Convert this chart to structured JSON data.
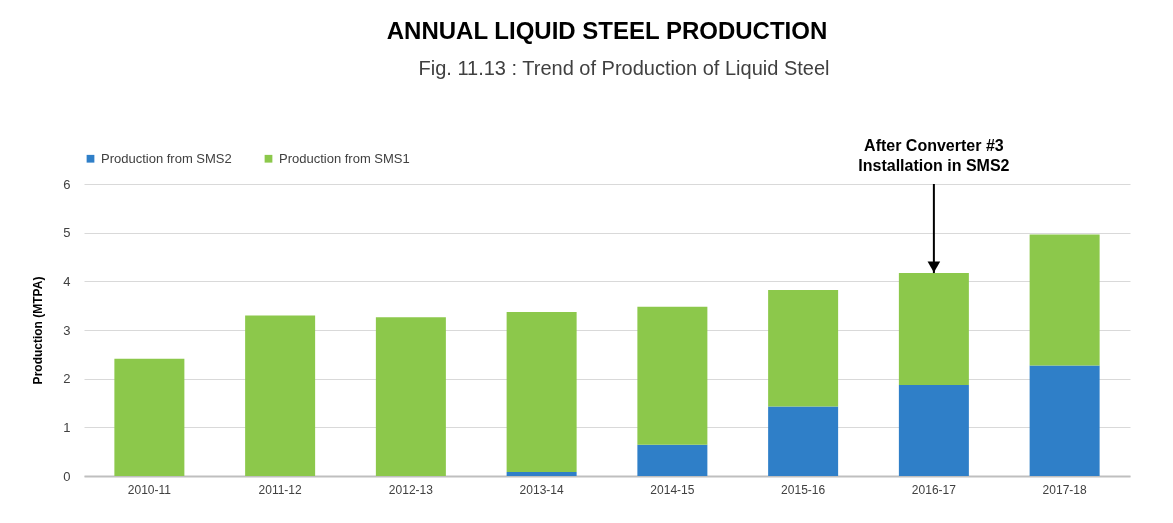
{
  "chart_data": {
    "type": "bar",
    "title": "ANNUAL LIQUID STEEL PRODUCTION",
    "ylabel": "Production (MTPA)",
    "categories": [
      "2010-11",
      "2011-12",
      "2012-13",
      "2013-14",
      "2014-15",
      "2015-16",
      "2016-17",
      "2017-18"
    ],
    "stacked": true,
    "series": [
      {
        "name": "Production from SMS2",
        "color": "#2f7fc8",
        "values": [
          0,
          0,
          0,
          0.08,
          0.64,
          1.43,
          1.87,
          2.27
        ]
      },
      {
        "name": "Production from SMS1",
        "color": "#8cc84b",
        "values": [
          2.41,
          3.3,
          3.26,
          3.29,
          2.84,
          2.39,
          2.3,
          2.69
        ]
      }
    ],
    "ylim": [
      0,
      6
    ],
    "yticks": [
      0,
      1,
      2,
      3,
      4,
      5,
      6
    ],
    "grid": "y",
    "legend": "top",
    "annotations": [
      "Fig. 11.13 : Trend of Production of Liquid Steel",
      {
        "text": "After Converter #3\nInstallation in SMS2",
        "x": "2016-17",
        "y": 4.17
      }
    ]
  }
}
